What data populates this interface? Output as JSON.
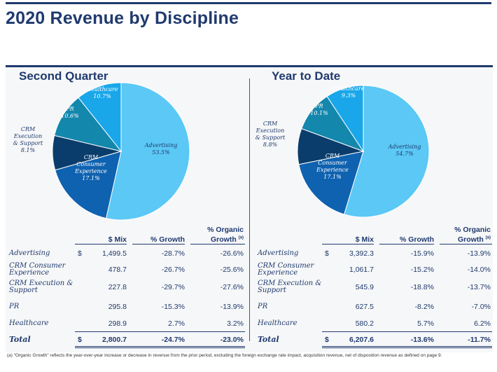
{
  "title": "2020 Revenue by Discipline",
  "colors": {
    "advertising": "#5bc8f5",
    "crm_consumer_experience": "#0f62b0",
    "crm_execution_support": "#0a3d6b",
    "pr": "#1487ad",
    "healthcare": "#19a7ea",
    "title": "#1f3a6e"
  },
  "chart_data": [
    {
      "type": "pie",
      "title": "Second Quarter",
      "slices": [
        {
          "label": "Advertising",
          "value": 53.5,
          "value_label": "53.5%"
        },
        {
          "label": "CRM Consumer Experience",
          "label_lines": [
            "CRM",
            "Consumer",
            "Experience"
          ],
          "value": 17.1,
          "value_label": "17.1%"
        },
        {
          "label": "CRM Execution & Support",
          "label_lines": [
            "CRM",
            "Execution",
            "& Support"
          ],
          "value": 8.1,
          "value_label": "8.1%"
        },
        {
          "label": "PR",
          "value": 10.6,
          "value_label": "10.6%"
        },
        {
          "label": "Healthcare",
          "value": 10.7,
          "value_label": "10.7%"
        }
      ]
    },
    {
      "type": "pie",
      "title": "Year to Date",
      "slices": [
        {
          "label": "Advertising",
          "value": 54.7,
          "value_label": "54.7%"
        },
        {
          "label": "CRM Consumer Experience",
          "label_lines": [
            "CRM",
            "Consumer",
            "Experience"
          ],
          "value": 17.1,
          "value_label": "17.1%"
        },
        {
          "label": "CRM Execution & Support",
          "label_lines": [
            "CRM",
            "Execution",
            "& Support"
          ],
          "value": 8.8,
          "value_label": "8.8%"
        },
        {
          "label": "PR",
          "value": 10.1,
          "value_label": "10.1%"
        },
        {
          "label": "Healthcare",
          "value": 9.3,
          "value_label": "9.3%"
        }
      ]
    }
  ],
  "tables": {
    "headers": {
      "mix": "$ Mix",
      "growth": "% Growth",
      "organic": "% Organic Growth",
      "organic_line1": "% Organic",
      "organic_line2": "Growth",
      "organic_note": "(a)"
    },
    "currency": "$",
    "q2": {
      "rows": [
        {
          "label": "Advertising",
          "mix": "1,499.5",
          "growth": "-28.7%",
          "organic": "-26.6%"
        },
        {
          "label": "CRM Consumer Experience",
          "mix": "478.7",
          "growth": "-26.7%",
          "organic": "-25.6%"
        },
        {
          "label": "CRM Execution & Support",
          "mix": "227.8",
          "growth": "-29.7%",
          "organic": "-27.6%"
        },
        {
          "label": "PR",
          "mix": "295.8",
          "growth": "-15.3%",
          "organic": "-13.9%"
        },
        {
          "label": "Healthcare",
          "mix": "298.9",
          "growth": "2.7%",
          "organic": "3.2%"
        }
      ],
      "total": {
        "label": "Total",
        "mix": "2,800.7",
        "growth": "-24.7%",
        "organic": "-23.0%"
      }
    },
    "ytd": {
      "rows": [
        {
          "label": "Advertising",
          "mix": "3,392.3",
          "growth": "-15.9%",
          "organic": "-13.9%"
        },
        {
          "label": "CRM Consumer Experience",
          "mix": "1,061.7",
          "growth": "-15.2%",
          "organic": "-14.0%"
        },
        {
          "label": "CRM Execution & Support",
          "mix": "545.9",
          "growth": "-18.8%",
          "organic": "-13.7%"
        },
        {
          "label": "PR",
          "mix": "627.5",
          "growth": "-8.2%",
          "organic": "-7.0%"
        },
        {
          "label": "Healthcare",
          "mix": "580.2",
          "growth": "5.7%",
          "organic": "6.2%"
        }
      ],
      "total": {
        "label": "Total",
        "mix": "6,207.6",
        "growth": "-13.6%",
        "organic": "-11.7%"
      }
    }
  },
  "footnote": "(a)  “Organic Growth” reflects the year-over-year increase or decrease in revenue from the prior period, excluding the foreign exchange rate impact, acquisition revenue, net of disposition revenue as defined on page 9."
}
